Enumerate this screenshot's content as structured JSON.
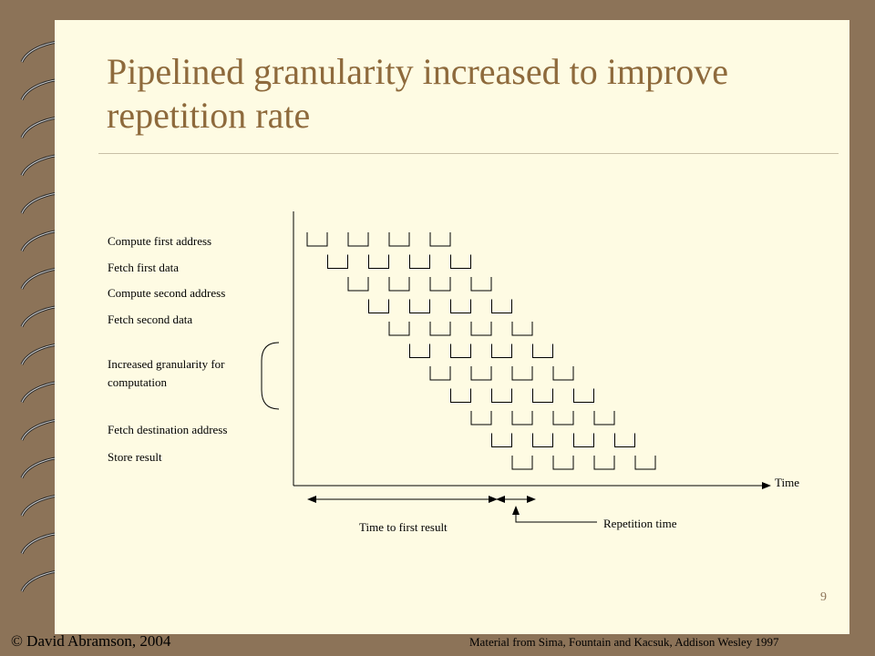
{
  "slide": {
    "title": "Pipelined granularity increased to improve repetition rate",
    "page_number": "9",
    "copyright": "© David Abramson, 2004",
    "credit": "Material from Sima, Fountain and Kacsuk, Addison Wesley 1997"
  },
  "diagram": {
    "stage_labels": [
      "Compute first address",
      "Fetch first data",
      "Compute second address",
      "Fetch second data",
      "Increased granularity for computation",
      "Fetch destination address",
      "Store result"
    ],
    "x_axis_label": "Time",
    "time_to_first_result_label": "Time to first result",
    "repetition_time_label": "Repetition time",
    "pipeline_rows": 11,
    "boxes_per_row": 4
  },
  "colors": {
    "background": "#8c7358",
    "page": "#fefbe3",
    "title": "#8e6a3c"
  }
}
